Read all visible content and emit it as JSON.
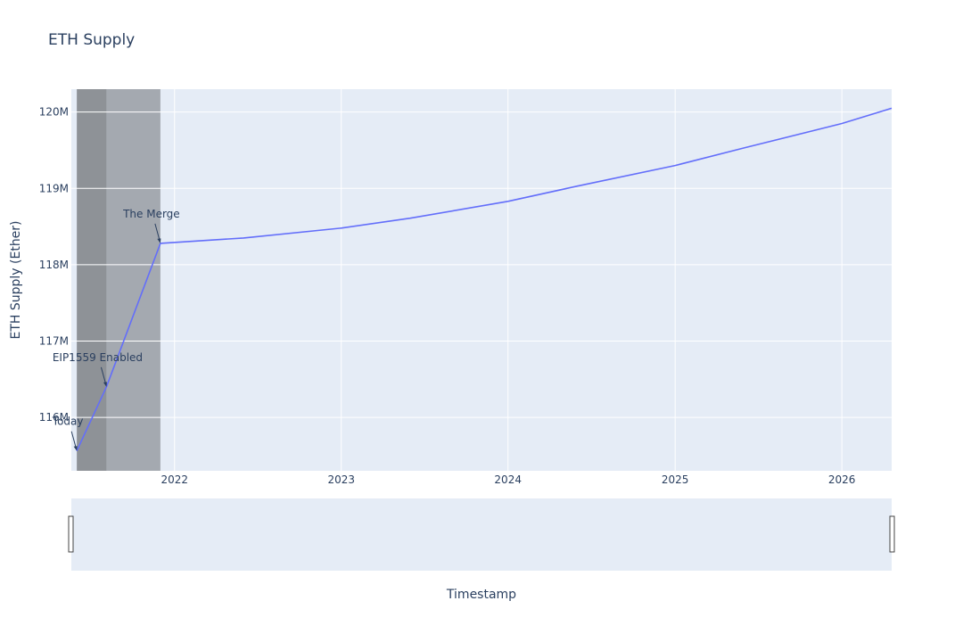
{
  "chart_data": {
    "type": "line",
    "title": "ETH Supply",
    "xlabel": "Timestamp",
    "ylabel": "ETH Supply (Ether)",
    "xlim": [
      "2021-05-20",
      "2026-04-20"
    ],
    "ylim": [
      115300000,
      120300000
    ],
    "x_ticks": [
      "2022-01-01",
      "2023-01-01",
      "2024-01-01",
      "2025-01-01",
      "2026-01-01"
    ],
    "x_tick_labels": [
      "2022",
      "2023",
      "2024",
      "2025",
      "2026"
    ],
    "y_ticks": [
      116000000,
      117000000,
      118000000,
      119000000,
      120000000
    ],
    "y_tick_labels": [
      "116M",
      "117M",
      "118M",
      "119M",
      "120M"
    ],
    "grid": true,
    "range_slider": true,
    "series": [
      {
        "color": "#636efa",
        "x": [
          "2021-06-01",
          "2021-08-05",
          "2021-12-01",
          "2022-06-01",
          "2023-01-01",
          "2023-06-01",
          "2024-01-01",
          "2024-06-01",
          "2025-01-01",
          "2025-06-01",
          "2026-01-01",
          "2026-04-20"
        ],
        "y": [
          115560000,
          116400000,
          118280000,
          118350000,
          118480000,
          118610000,
          118830000,
          119030000,
          119300000,
          119530000,
          119850000,
          120050000
        ]
      }
    ],
    "shaded_regions": [
      {
        "x0": "2021-06-01",
        "x1": "2021-08-05",
        "color": "#8e9297"
      },
      {
        "x0": "2021-08-05",
        "x1": "2021-12-01",
        "color": "#a4a9b0"
      }
    ],
    "annotations": [
      {
        "text": "Today",
        "x": "2021-06-01",
        "y": 115560000
      },
      {
        "text": "EIP1559 Enabled",
        "x": "2021-08-05",
        "y": 116400000
      },
      {
        "text": "The Merge",
        "x": "2021-12-01",
        "y": 118280000
      }
    ]
  }
}
